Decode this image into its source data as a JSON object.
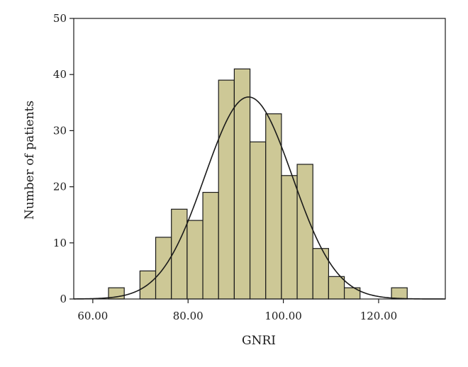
{
  "chart_data": {
    "type": "bar",
    "subtype": "histogram-with-normal-curve",
    "xlabel": "GNRI",
    "ylabel": "Number of patients",
    "xlim": [
      56,
      134
    ],
    "ylim": [
      0,
      50
    ],
    "xticks": [
      60,
      80,
      100,
      120
    ],
    "xtick_labels": [
      "60.00",
      "80.00",
      "100.00",
      "120.00"
    ],
    "yticks": [
      0,
      10,
      20,
      30,
      40,
      50
    ],
    "ytick_labels": [
      "0",
      "10",
      "20",
      "30",
      "40",
      "50"
    ],
    "bin_width": 3.3,
    "bins": [
      {
        "x0": 63.3,
        "x1": 66.6,
        "count": 2
      },
      {
        "x0": 69.9,
        "x1": 73.2,
        "count": 5
      },
      {
        "x0": 73.2,
        "x1": 76.5,
        "count": 11
      },
      {
        "x0": 76.5,
        "x1": 79.8,
        "count": 16
      },
      {
        "x0": 79.8,
        "x1": 83.1,
        "count": 14
      },
      {
        "x0": 83.1,
        "x1": 86.4,
        "count": 19
      },
      {
        "x0": 86.4,
        "x1": 89.7,
        "count": 39
      },
      {
        "x0": 89.7,
        "x1": 93.0,
        "count": 41
      },
      {
        "x0": 93.0,
        "x1": 96.3,
        "count": 28
      },
      {
        "x0": 96.3,
        "x1": 99.6,
        "count": 33
      },
      {
        "x0": 99.6,
        "x1": 102.9,
        "count": 22
      },
      {
        "x0": 102.9,
        "x1": 106.2,
        "count": 24
      },
      {
        "x0": 106.2,
        "x1": 109.5,
        "count": 9
      },
      {
        "x0": 109.5,
        "x1": 112.8,
        "count": 4
      },
      {
        "x0": 112.8,
        "x1": 116.1,
        "count": 2
      },
      {
        "x0": 122.7,
        "x1": 126.0,
        "count": 2
      }
    ],
    "normal_curve": {
      "mean": 92.7,
      "sd": 9.2,
      "peak": 36
    },
    "colors": {
      "bar_fill": "#cdc896",
      "stroke": "#1a1a1a"
    }
  }
}
